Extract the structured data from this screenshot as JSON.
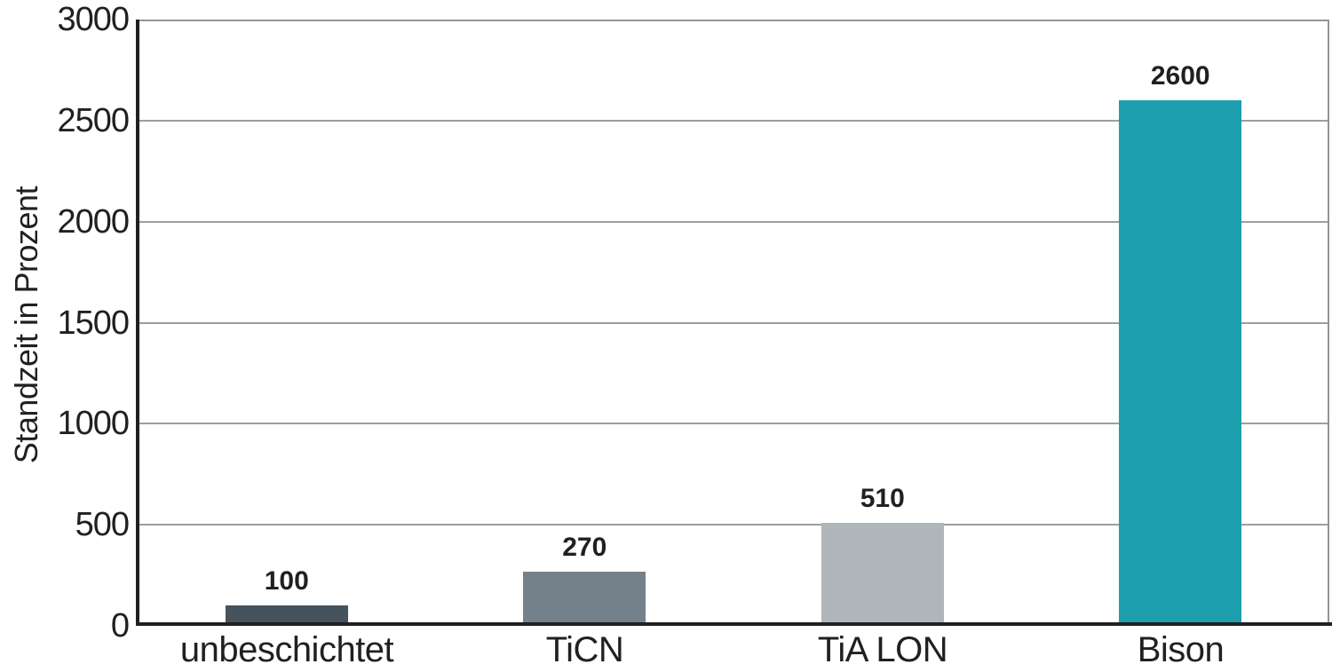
{
  "chart_data": {
    "type": "bar",
    "title": "",
    "xlabel": "",
    "ylabel": "Standzeit in Prozent",
    "categories": [
      "unbeschichtet",
      "TiCN",
      "TiA LON",
      "Bison"
    ],
    "values": [
      100,
      270,
      510,
      2600
    ],
    "value_labels": [
      "100",
      "270",
      "510",
      "2600"
    ],
    "bar_colors": [
      "#46525c",
      "#75818a",
      "#aeb6ba",
      "#1d9fae"
    ],
    "ylim": [
      0,
      3000
    ],
    "yticks": [
      0,
      500,
      1000,
      1500,
      2000,
      2500,
      3000
    ],
    "grid": "horizontal gridlines at each 500",
    "legend": "none"
  },
  "colors": {
    "background": "#ffffff",
    "axis": "#231f20",
    "gridline": "#9c9ea0",
    "plot_border": "#939598",
    "text": "#231f20",
    "accent_teal": "#1d9fae"
  }
}
